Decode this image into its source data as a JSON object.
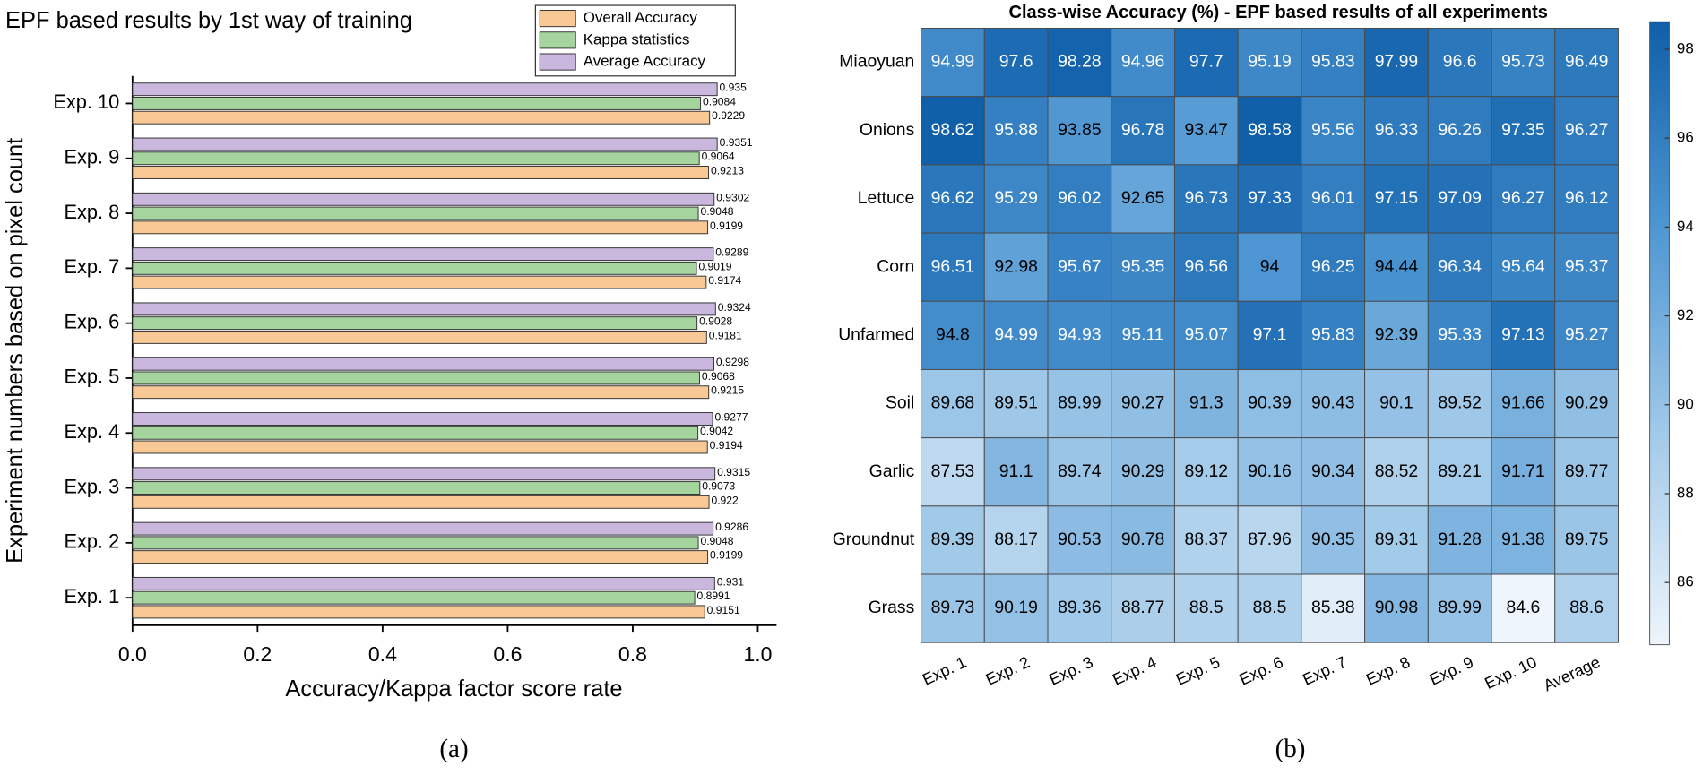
{
  "chart_data": [
    {
      "type": "hbar",
      "title": "EPF based results by 1st way of training",
      "x_label": "Accuracy/Kappa factor score rate",
      "y_label": "Experiment numbers based on pixel count",
      "caption": "(a)",
      "categories": [
        "Exp. 1",
        "Exp. 2",
        "Exp. 3",
        "Exp. 4",
        "Exp. 5",
        "Exp. 6",
        "Exp. 7",
        "Exp. 8",
        "Exp. 9",
        "Exp. 10"
      ],
      "series": [
        {
          "name": "Overall Accuracy",
          "color": "#f8c995",
          "values": [
            0.9151,
            0.9199,
            0.922,
            0.9194,
            0.9215,
            0.9181,
            0.9174,
            0.9199,
            0.9213,
            0.9229
          ]
        },
        {
          "name": "Kappa statistics",
          "color": "#a6d49f",
          "values": [
            0.8991,
            0.9048,
            0.9073,
            0.9042,
            0.9068,
            0.9028,
            0.9019,
            0.9048,
            0.9064,
            0.9084
          ]
        },
        {
          "name": "Average Accuracy",
          "color": "#c9b7de",
          "values": [
            0.931,
            0.9286,
            0.9315,
            0.9277,
            0.9298,
            0.9324,
            0.9289,
            0.9302,
            0.9351,
            0.935
          ]
        }
      ],
      "xlim": [
        0,
        1.03
      ],
      "xticks": [
        {
          "value": 0,
          "label": "0.0"
        },
        0.2,
        0.4,
        0.6,
        0.8,
        {
          "value": 1,
          "label": "1.0"
        }
      ],
      "legend": "top-right"
    },
    {
      "type": "heatmap",
      "title": "Class-wise Accuracy (%) - EPF based results of all experiments",
      "caption": "(b)",
      "columns": [
        "Exp. 1",
        "Exp. 2",
        "Exp. 3",
        "Exp. 4",
        "Exp. 5",
        "Exp. 6",
        "Exp. 7",
        "Exp. 8",
        "Exp. 9",
        "Exp. 10",
        "Average"
      ],
      "rows": [
        "Miaoyuan",
        "Onions",
        "Lettuce",
        "Corn",
        "Unfarmed",
        "Soil",
        "Garlic",
        "Groundnut",
        "Grass"
      ],
      "values": [
        [
          94.99,
          97.6,
          98.28,
          94.96,
          97.7,
          95.19,
          95.83,
          97.99,
          96.6,
          95.73,
          96.49
        ],
        [
          98.62,
          95.88,
          93.85,
          96.78,
          93.47,
          98.58,
          95.56,
          96.33,
          96.26,
          97.35,
          96.27
        ],
        [
          96.62,
          95.29,
          96.02,
          92.65,
          96.73,
          97.33,
          96.01,
          97.15,
          97.09,
          96.27,
          96.12
        ],
        [
          96.51,
          92.98,
          95.67,
          95.35,
          96.56,
          94,
          96.25,
          94.44,
          96.34,
          95.64,
          95.37
        ],
        [
          94.8,
          94.99,
          94.93,
          95.11,
          95.07,
          97.1,
          95.83,
          92.39,
          95.33,
          97.13,
          95.27
        ],
        [
          89.68,
          89.51,
          89.99,
          90.27,
          91.3,
          90.39,
          90.43,
          90.1,
          89.52,
          91.66,
          90.29
        ],
        [
          87.53,
          91.1,
          89.74,
          90.29,
          89.12,
          90.16,
          90.34,
          88.52,
          89.21,
          91.71,
          89.77
        ],
        [
          89.39,
          88.17,
          90.53,
          90.78,
          88.37,
          87.96,
          90.35,
          89.31,
          91.28,
          91.38,
          89.75
        ],
        [
          89.73,
          90.19,
          89.36,
          88.77,
          88.5,
          88.5,
          85.38,
          90.98,
          89.99,
          84.6,
          88.6
        ]
      ],
      "zlim": [
        84.6,
        98.62
      ],
      "zticks": [
        86,
        88,
        90,
        92,
        94,
        96,
        98
      ],
      "colormap": [
        "#eef5fc",
        "#a3cae9",
        "#4f97d3",
        "#0f5fa9"
      ]
    }
  ]
}
